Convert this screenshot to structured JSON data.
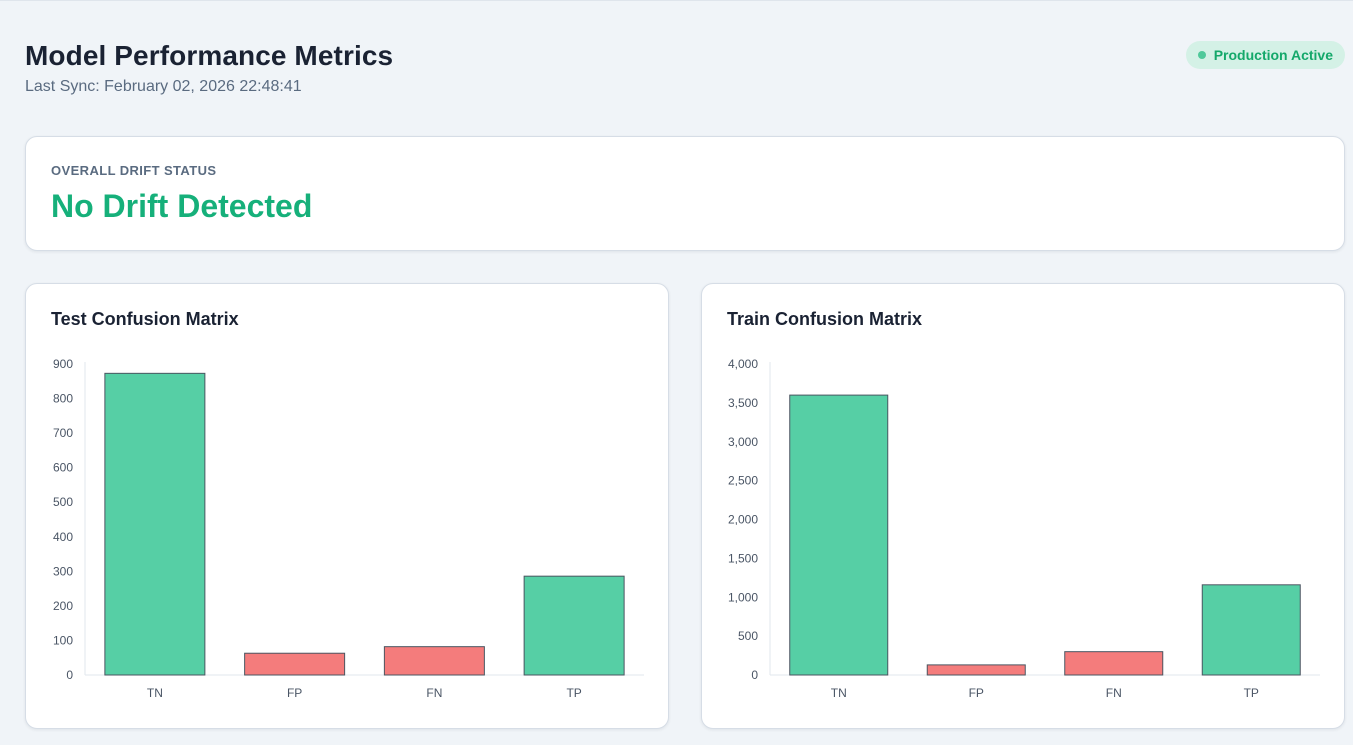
{
  "header": {
    "title": "Model Performance Metrics",
    "last_sync": "Last Sync: February 02, 2026 22:48:41",
    "status": "Production Active",
    "status_color": "#14a86a"
  },
  "drift": {
    "label": "OVERALL DRIFT STATUS",
    "value": "No Drift Detected",
    "value_color": "#16b07a"
  },
  "colors": {
    "correct": "#56cfa5",
    "error": "#f47c7c",
    "bar_stroke": "#4a5560"
  },
  "chart_data": [
    {
      "type": "bar",
      "title": "Test Confusion Matrix",
      "categories": [
        "TN",
        "FP",
        "FN",
        "TP"
      ],
      "values": [
        873,
        63,
        82,
        286
      ],
      "ylim": [
        0,
        900
      ],
      "yticks": [
        0,
        100,
        200,
        300,
        400,
        500,
        600,
        700,
        800,
        900
      ],
      "ytick_labels": [
        "0",
        "100",
        "200",
        "300",
        "400",
        "500",
        "600",
        "700",
        "800",
        "900"
      ],
      "bar_colors": [
        "#56cfa5",
        "#f47c7c",
        "#f47c7c",
        "#56cfa5"
      ],
      "grid": false,
      "legend": "none"
    },
    {
      "type": "bar",
      "title": "Train Confusion Matrix",
      "categories": [
        "TN",
        "FP",
        "FN",
        "TP"
      ],
      "values": [
        3600,
        130,
        300,
        1160
      ],
      "ylim": [
        0,
        4000
      ],
      "yticks": [
        0,
        500,
        1000,
        1500,
        2000,
        2500,
        3000,
        3500,
        4000
      ],
      "ytick_labels": [
        "0",
        "500",
        "1,000",
        "1,500",
        "2,000",
        "2,500",
        "3,000",
        "3,500",
        "4,000"
      ],
      "bar_colors": [
        "#56cfa5",
        "#f47c7c",
        "#f47c7c",
        "#56cfa5"
      ],
      "grid": false,
      "legend": "none"
    }
  ]
}
